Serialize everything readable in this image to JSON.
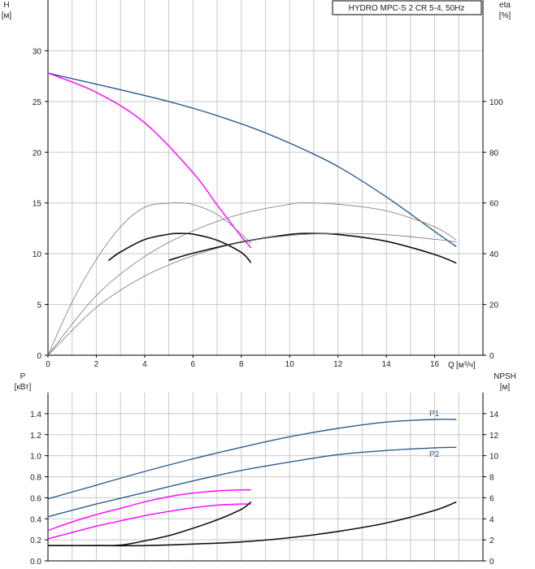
{
  "colors": {
    "grid": "#c8c8c8",
    "axis": "#000000",
    "blue": "#2e5d8e",
    "magenta": "#ff00ff",
    "black": "#111111",
    "gray": "#777777"
  },
  "chart_data": [
    {
      "type": "line",
      "title": "HYDRO MPC-S 2 CR 5-4, 50Hz",
      "ylabel": "H",
      "yunit": "[м]",
      "y2label": "eta",
      "y2unit": "[%]",
      "xlabel": "Q",
      "xunit": "[м³/ч]",
      "xlim": [
        0,
        18
      ],
      "ylim": [
        0,
        35
      ],
      "y2lim": [
        0,
        140
      ],
      "xticks": [
        0,
        2,
        4,
        6,
        8,
        10,
        12,
        14,
        16
      ],
      "yticks": [
        0,
        5,
        10,
        15,
        20,
        25,
        30
      ],
      "y2ticks": [
        0,
        20,
        40,
        60,
        80,
        100
      ],
      "grid": true,
      "series": [
        {
          "role": "H pump curve",
          "axis": "left",
          "color": "blue",
          "x": [
            0,
            5,
            8,
            10,
            12,
            14,
            16,
            16.9
          ],
          "y": [
            27.8,
            25.0,
            22.8,
            20.9,
            18.6,
            15.6,
            12.2,
            10.7
          ]
        },
        {
          "role": "H single pump",
          "axis": "left",
          "color": "magenta",
          "x": [
            0,
            2,
            4,
            6,
            7,
            8,
            8.4
          ],
          "y": [
            27.8,
            25.9,
            22.9,
            18.0,
            14.8,
            11.7,
            10.6
          ]
        },
        {
          "role": "eta max envelope (two pumps)",
          "axis": "right",
          "color": "gray",
          "x": [
            0,
            2,
            4,
            6,
            8,
            10,
            10.7,
            12,
            14,
            16,
            16.9
          ],
          "y": [
            0,
            23.5,
            38.9,
            49.0,
            55.7,
            59.5,
            60,
            59.5,
            56.9,
            50.6,
            45.4
          ]
        },
        {
          "role": "eta max (single pump)",
          "axis": "right",
          "color": "gray",
          "x": [
            0,
            1,
            2,
            3,
            4,
            5,
            5.4,
            6,
            7,
            8,
            8.4
          ],
          "y": [
            0,
            21.0,
            37.7,
            50.6,
            58.3,
            59.9,
            60,
            59.4,
            55.5,
            47.8,
            44.0
          ]
        },
        {
          "role": "eta duty (single pump)",
          "axis": "right",
          "color": "black",
          "x": [
            2.5,
            3,
            4,
            5,
            5.4,
            6,
            7,
            8,
            8.4
          ],
          "y": [
            37.3,
            40.7,
            45.6,
            47.7,
            48,
            47.7,
            45.3,
            40.5,
            36.5
          ]
        },
        {
          "role": "eta duty (two pumps)",
          "axis": "right",
          "color": "black",
          "x": [
            5,
            6,
            8,
            10,
            10.8,
            12,
            14,
            16,
            16.9
          ],
          "y": [
            37.4,
            40.2,
            44.6,
            47.6,
            48,
            47.6,
            44.9,
            39.7,
            36.3
          ]
        },
        {
          "role": "eta lower (two pumps)",
          "axis": "right",
          "color": "gray",
          "x": [
            0,
            2,
            4,
            6,
            8,
            10,
            12,
            14,
            16,
            16.9
          ],
          "y": [
            0,
            18.8,
            31.2,
            39.2,
            44.5,
            47.2,
            48.0,
            47.5,
            45.7,
            44.7
          ]
        }
      ]
    },
    {
      "type": "line",
      "ylabel": "P",
      "yunit": "[кВт]",
      "y2label": "NPSH",
      "y2unit": "[м]",
      "xlim": [
        0,
        18
      ],
      "ylim": [
        0,
        1.6
      ],
      "y2lim": [
        0,
        16
      ],
      "yticks": [
        0.0,
        0.2,
        0.4,
        0.6,
        0.8,
        1.0,
        1.2,
        1.4
      ],
      "yticklabels": [
        "0.0",
        "0.2",
        "0.4",
        "0.6",
        "0.8",
        "1.0",
        "1.2",
        "1.4"
      ],
      "y2ticks": [
        0,
        2,
        4,
        6,
        8,
        10,
        12,
        14
      ],
      "grid": true,
      "series": [
        {
          "name": "P1",
          "axis": "left",
          "color": "blue",
          "x": [
            0,
            2,
            4,
            6,
            8,
            10,
            12,
            14,
            16,
            16.9
          ],
          "y": [
            0.59,
            0.72,
            0.85,
            0.97,
            1.08,
            1.18,
            1.26,
            1.32,
            1.345,
            1.345
          ]
        },
        {
          "name": "P2",
          "axis": "left",
          "color": "blue",
          "x": [
            0,
            2,
            4,
            6,
            8,
            10,
            12,
            14,
            16,
            16.9
          ],
          "y": [
            0.42,
            0.54,
            0.65,
            0.76,
            0.86,
            0.94,
            1.01,
            1.05,
            1.075,
            1.08
          ]
        },
        {
          "role": "P1 single pump",
          "axis": "left",
          "color": "magenta",
          "x": [
            0,
            1,
            2,
            3,
            4,
            5,
            6,
            7,
            8,
            8.4
          ],
          "y": [
            0.29,
            0.37,
            0.44,
            0.5,
            0.56,
            0.61,
            0.645,
            0.665,
            0.675,
            0.675
          ]
        },
        {
          "role": "P2 single pump",
          "axis": "left",
          "color": "magenta",
          "x": [
            0,
            1,
            2,
            3,
            4,
            5,
            6,
            7,
            8,
            8.4
          ],
          "y": [
            0.21,
            0.27,
            0.33,
            0.38,
            0.43,
            0.47,
            0.505,
            0.53,
            0.54,
            0.54
          ]
        },
        {
          "role": "NPSH single pump",
          "axis": "right",
          "color": "black",
          "x": [
            0,
            2,
            3,
            4,
            5,
            6,
            7,
            8,
            8.4
          ],
          "y": [
            1.45,
            1.45,
            1.5,
            1.9,
            2.4,
            3.1,
            3.9,
            4.9,
            5.6
          ]
        },
        {
          "role": "NPSH two pumps",
          "axis": "right",
          "color": "black",
          "x": [
            0,
            2,
            4,
            6,
            8,
            10,
            12,
            14,
            16,
            16.9
          ],
          "y": [
            1.45,
            1.45,
            1.45,
            1.6,
            1.8,
            2.2,
            2.8,
            3.6,
            4.8,
            5.6
          ]
        }
      ]
    }
  ]
}
